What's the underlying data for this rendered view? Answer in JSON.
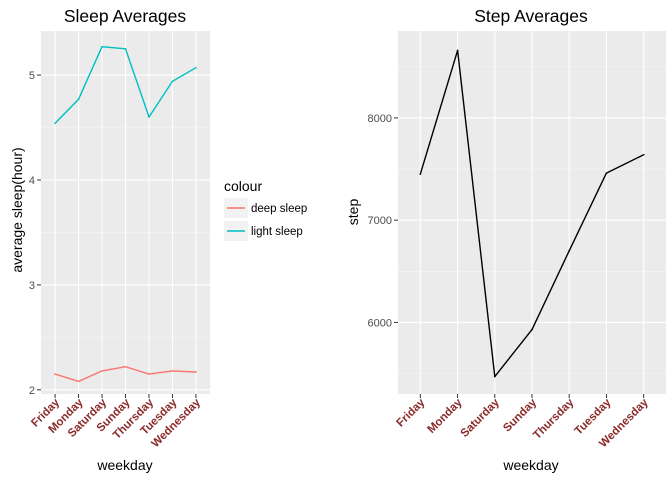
{
  "chart_data": [
    {
      "type": "line",
      "title": "Sleep Averages",
      "xlabel": "weekday",
      "ylabel": "average sleep(hour)",
      "categories": [
        "Friday",
        "Monday",
        "Saturday",
        "Sunday",
        "Thursday",
        "Tuesday",
        "Wednesday"
      ],
      "yticks": [
        2,
        3,
        4,
        5
      ],
      "ylim": [
        1.96,
        5.42
      ],
      "grid": true,
      "legend": {
        "title": "colour",
        "placement": "right",
        "entries": [
          {
            "label": "deep sleep",
            "color": "#f8766d"
          },
          {
            "label": "light sleep",
            "color": "#00bfc4"
          }
        ]
      },
      "series": [
        {
          "name": "deep sleep",
          "color": "#f8766d",
          "values": [
            2.15,
            2.08,
            2.18,
            2.22,
            2.15,
            2.18,
            2.17
          ]
        },
        {
          "name": "light sleep",
          "color": "#00bfc4",
          "values": [
            4.54,
            4.77,
            5.27,
            5.25,
            4.6,
            4.94,
            5.07
          ]
        }
      ]
    },
    {
      "type": "line",
      "title": "Step Averages",
      "xlabel": "weekday",
      "ylabel": "step",
      "categories": [
        "Friday",
        "Monday",
        "Saturday",
        "Sunday",
        "Thursday",
        "Tuesday",
        "Wednesday"
      ],
      "yticks": [
        6000,
        7000,
        8000
      ],
      "ylim": [
        5300,
        8850
      ],
      "grid": true,
      "series": [
        {
          "color": "#000000",
          "values": [
            7450,
            8660,
            5470,
            5930,
            6700,
            7460,
            7640
          ]
        }
      ]
    }
  ]
}
